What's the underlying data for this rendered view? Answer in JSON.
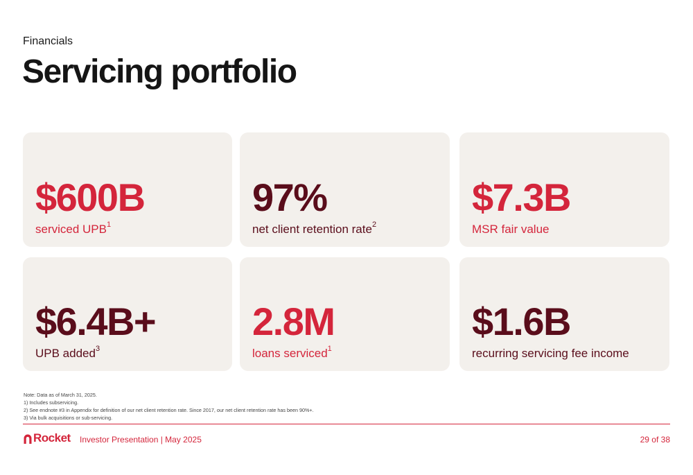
{
  "header": {
    "kicker": "Financials",
    "title": "Servicing portfolio"
  },
  "colors": {
    "accent_red": "#d4253b",
    "maroon": "#5a0d1b",
    "card_bg": "#f3f0ec"
  },
  "cards": [
    {
      "value": "$600B",
      "label": "serviced UPB",
      "sup": "1",
      "tone": "red"
    },
    {
      "value": "97%",
      "label": "net client retention rate",
      "sup": "2",
      "tone": "maroon"
    },
    {
      "value": "$7.3B",
      "label": "MSR fair value",
      "sup": "",
      "tone": "red"
    },
    {
      "value": "$6.4B+",
      "label": "UPB added",
      "sup": "3",
      "tone": "maroon"
    },
    {
      "value": "2.8M",
      "label": "loans serviced",
      "sup": "1",
      "tone": "red"
    },
    {
      "value": "$1.6B",
      "label": "recurring servicing fee income",
      "sup": "",
      "tone": "maroon"
    }
  ],
  "notes": [
    "Note: Data as of March 31, 2025.",
    "1)  Includes subservicing.",
    "2)  See endnote #3 in Appendix for definition of our net client retention rate. Since 2017, our net client retention rate has been 90%+.",
    "3)  Via bulk acquisitions or sub-servicing."
  ],
  "footer": {
    "logo_text": "Rocket",
    "logo_icon": "rocket-arch-icon",
    "presentation": "Investor Presentation | May 2025",
    "page": "29 of 38"
  }
}
